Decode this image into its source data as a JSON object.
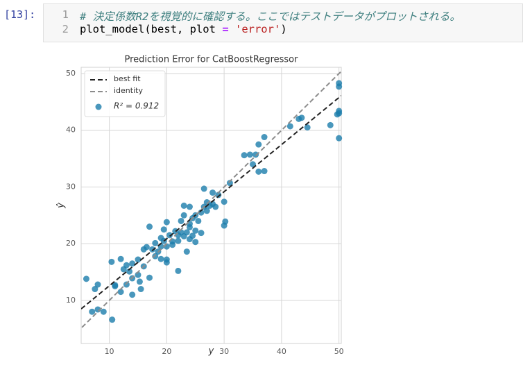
{
  "cell": {
    "prompt": "[13]:",
    "lines": [
      {
        "number": "1",
        "tokens": [
          {
            "text": "# 決定係数R2を視覚的に確認する。ここではテストデータがプロットされる。",
            "color": "#408080",
            "italic": true
          }
        ]
      },
      {
        "number": "2",
        "tokens": [
          {
            "text": "plot_model(best, plot ",
            "color": "#000000"
          },
          {
            "text": "= ",
            "color": "#aa22ff",
            "bold": true
          },
          {
            "text": "'error'",
            "color": "#ba2121"
          },
          {
            "text": ")",
            "color": "#000000"
          }
        ]
      }
    ]
  },
  "chart_data": {
    "type": "scatter",
    "title": "Prediction Error for CatBoostRegressor",
    "x_label": "y",
    "y_label": "ŷ",
    "xlim": [
      5.1,
      50.4
    ],
    "ylim": [
      2.4,
      51.1
    ],
    "xticks": [
      10,
      20,
      30,
      40,
      50
    ],
    "yticks": [
      10,
      20,
      30,
      40,
      50
    ],
    "grid": true,
    "legend": "upper left",
    "best_fit": {
      "name": "best fit",
      "color": "#222222",
      "slope": 0.83,
      "intercept": 4.27
    },
    "identity": {
      "name": "identity",
      "color": "#8c8c8c"
    },
    "series": [
      {
        "name": "R² = 0.912",
        "color": "#1b7dab",
        "x": [
          6,
          7,
          7.5,
          8,
          8,
          9,
          10.4,
          10.5,
          11,
          11,
          12,
          12,
          12.5,
          13,
          13,
          13.5,
          14,
          14,
          14,
          15,
          15,
          15.3,
          15.5,
          16,
          16,
          16.5,
          17,
          17,
          17.5,
          18,
          18,
          18.5,
          19,
          19,
          19,
          19.5,
          19.5,
          20,
          20,
          20,
          20,
          20.5,
          21,
          21,
          21.5,
          22,
          22,
          22,
          22.5,
          22.5,
          23,
          23,
          23,
          23.5,
          23.5,
          24,
          24,
          24,
          24,
          24.5,
          24.5,
          25,
          25,
          25,
          25.5,
          26,
          26,
          26.5,
          26.5,
          27,
          27,
          27.5,
          28,
          28,
          28.5,
          29,
          30,
          30,
          30.2,
          31,
          33.5,
          34.5,
          35,
          35.5,
          36,
          36,
          37,
          37,
          41.5,
          43,
          43.5,
          44.5,
          48.5,
          50,
          50,
          50,
          50,
          50,
          49.7
        ],
        "values": [
          13.8,
          8,
          12,
          12.8,
          8.4,
          8,
          16.8,
          6.6,
          12.5,
          12.7,
          17.3,
          11.5,
          15.5,
          16.2,
          12.8,
          15.1,
          11,
          16.5,
          13.9,
          17.2,
          14.5,
          13.3,
          12,
          16,
          19,
          19.4,
          23,
          14,
          19,
          17.8,
          20.1,
          18.6,
          17.3,
          21,
          19.5,
          22.5,
          20.5,
          16.7,
          19.5,
          17.2,
          23.8,
          21.5,
          19.8,
          20.4,
          22.2,
          15.2,
          21.5,
          20.5,
          24,
          22,
          25,
          21.3,
          26.7,
          22,
          18.6,
          23.5,
          26.5,
          20.8,
          22.9,
          24.5,
          21.4,
          25,
          22.3,
          20.3,
          24,
          25.5,
          21.9,
          26.5,
          29.7,
          27.3,
          25.8,
          26.7,
          29,
          27,
          26.5,
          28.6,
          27.4,
          23.2,
          23.9,
          30.7,
          35.6,
          35.7,
          34,
          35.7,
          32.7,
          37.5,
          38.8,
          32.8,
          40.7,
          42,
          42.2,
          40.5,
          40.9,
          48.3,
          47.7,
          43.4,
          43,
          38.6,
          42.8
        ]
      }
    ]
  }
}
